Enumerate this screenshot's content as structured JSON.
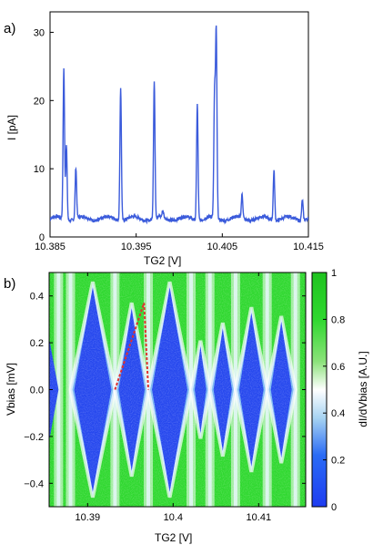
{
  "chart_data": [
    {
      "panel_label": "a)",
      "type": "line",
      "xlabel": "TG2 [V]",
      "ylabel": "I [pA]",
      "xlim": [
        10.385,
        10.415
      ],
      "ylim": [
        0,
        33
      ],
      "x_ticks": [
        10.385,
        10.395,
        10.405,
        10.415
      ],
      "x_tick_labels": [
        "10.385",
        "10.395",
        "10.405",
        "10.415"
      ],
      "y_ticks": [
        0,
        10,
        20,
        30
      ],
      "y_tick_labels": [
        "0",
        "10",
        "20",
        "30"
      ],
      "baseline": 2.5,
      "color": "#3b5bdb",
      "peaks": [
        {
          "x": 10.3866,
          "height": 24.5
        },
        {
          "x": 10.3869,
          "height": 13.5
        },
        {
          "x": 10.388,
          "height": 10.0
        },
        {
          "x": 10.3932,
          "height": 22.0
        },
        {
          "x": 10.3971,
          "height": 22.5
        },
        {
          "x": 10.3981,
          "height": 3.5
        },
        {
          "x": 10.4021,
          "height": 19.5
        },
        {
          "x": 10.4043,
          "height": 29.5
        },
        {
          "x": 10.4041,
          "height": 20.0
        },
        {
          "x": 10.4073,
          "height": 6.0
        },
        {
          "x": 10.411,
          "height": 9.8
        },
        {
          "x": 10.4143,
          "height": 5.5
        }
      ]
    },
    {
      "panel_label": "b)",
      "type": "heatmap",
      "xlabel": "TG2 [V]",
      "ylabel": "Vbias  [mV]",
      "colorbar_label": "dI/dVbias [A.U.]",
      "xlim": [
        10.3855,
        10.4155
      ],
      "ylim": [
        -0.5,
        0.5
      ],
      "x_ticks": [
        10.39,
        10.4,
        10.41
      ],
      "x_tick_labels": [
        "10.39",
        "10.4",
        "10.41"
      ],
      "y_ticks": [
        -0.4,
        -0.2,
        0.0,
        0.2,
        0.4
      ],
      "y_tick_labels": [
        "−0.4",
        "−0.2",
        "0.0",
        "0.2",
        "0.4"
      ],
      "colorbar_ticks": [
        0,
        0.2,
        0.4,
        0.6,
        0.8,
        1
      ],
      "colorbar_tick_labels": [
        "0",
        "0.2",
        "0.4",
        "0.6",
        "0.8",
        "1"
      ],
      "colorbar_range": [
        0,
        1
      ],
      "colorscale": [
        "#1e3cf0",
        "#2a6bf5",
        "#a8d4f2",
        "#ffffff",
        "#8be27a",
        "#2fd82f",
        "#1fc31f"
      ],
      "degeneracy_points": [
        10.3866,
        10.388,
        10.3932,
        10.3971,
        10.4021,
        10.4043,
        10.4073,
        10.411,
        10.4143
      ],
      "highlight_triangle": {
        "x_left": 10.3932,
        "x_right": 10.3971,
        "apex_x": 10.3966,
        "apex_y": 0.37,
        "color": "#e03030"
      }
    }
  ]
}
